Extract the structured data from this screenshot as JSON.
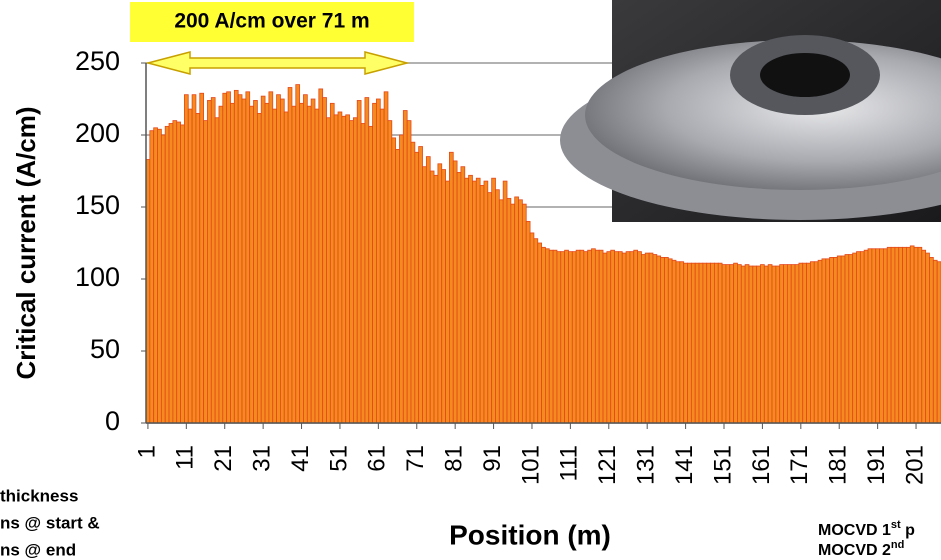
{
  "chart_data": {
    "type": "bar",
    "annotation": "200 A/cm over 71 m",
    "y_label": "Critical current (A/cm)",
    "x_label": "Position (m)",
    "color": "#f58a1f",
    "edge_color": "#e4471b",
    "grid": true,
    "ylim": [
      0,
      250
    ],
    "yticks": [
      0,
      50,
      100,
      150,
      200,
      250
    ],
    "xlim": [
      0.5,
      207.5
    ],
    "xticks": [
      1,
      11,
      21,
      31,
      41,
      51,
      61,
      71,
      81,
      91,
      101,
      111,
      121,
      131,
      141,
      151,
      161,
      171,
      181,
      191,
      201
    ],
    "x": [
      1,
      2,
      3,
      4,
      5,
      6,
      7,
      8,
      9,
      10,
      11,
      12,
      13,
      14,
      15,
      16,
      17,
      18,
      19,
      20,
      21,
      22,
      23,
      24,
      25,
      26,
      27,
      28,
      29,
      30,
      31,
      32,
      33,
      34,
      35,
      36,
      37,
      38,
      39,
      40,
      41,
      42,
      43,
      44,
      45,
      46,
      47,
      48,
      49,
      50,
      51,
      52,
      53,
      54,
      55,
      56,
      57,
      58,
      59,
      60,
      61,
      62,
      63,
      64,
      65,
      66,
      67,
      68,
      69,
      70,
      71,
      72,
      73,
      74,
      75,
      76,
      77,
      78,
      79,
      80,
      81,
      82,
      83,
      84,
      85,
      86,
      87,
      88,
      89,
      90,
      91,
      92,
      93,
      94,
      95,
      96,
      97,
      98,
      99,
      100,
      101,
      102,
      103,
      104,
      105,
      106,
      107,
      108,
      109,
      110,
      111,
      112,
      113,
      114,
      115,
      116,
      117,
      118,
      119,
      120,
      121,
      122,
      123,
      124,
      125,
      126,
      127,
      128,
      129,
      130,
      131,
      132,
      133,
      134,
      135,
      136,
      137,
      138,
      139,
      140,
      141,
      142,
      143,
      144,
      145,
      146,
      147,
      148,
      149,
      150,
      151,
      152,
      153,
      154,
      155,
      156,
      157,
      158,
      159,
      160,
      161,
      162,
      163,
      164,
      165,
      166,
      167,
      168,
      169,
      170,
      171,
      172,
      173,
      174,
      175,
      176,
      177,
      178,
      179,
      180,
      181,
      182,
      183,
      184,
      185,
      186,
      187,
      188,
      189,
      190,
      191,
      192,
      193,
      194,
      195,
      196,
      197,
      198,
      199,
      200,
      201,
      202,
      203,
      204,
      205,
      206,
      207
    ],
    "values": [
      183,
      203,
      205,
      204,
      200,
      206,
      208,
      210,
      209,
      207,
      228,
      218,
      228,
      215,
      229,
      210,
      224,
      226,
      212,
      220,
      229,
      230,
      222,
      231,
      228,
      225,
      230,
      220,
      224,
      215,
      227,
      222,
      230,
      218,
      228,
      225,
      216,
      233,
      220,
      235,
      222,
      228,
      220,
      225,
      218,
      232,
      226,
      212,
      222,
      214,
      216,
      213,
      214,
      210,
      212,
      224,
      208,
      226,
      206,
      222,
      225,
      218,
      230,
      210,
      198,
      190,
      200,
      217,
      210,
      195,
      188,
      192,
      178,
      185,
      175,
      172,
      180,
      176,
      168,
      188,
      182,
      174,
      178,
      170,
      172,
      168,
      170,
      165,
      168,
      160,
      170,
      162,
      155,
      168,
      156,
      152,
      157,
      155,
      152,
      140,
      132,
      128,
      125,
      122,
      121,
      120,
      120,
      119,
      119,
      120,
      119,
      119,
      120,
      120,
      119,
      120,
      121,
      120,
      120,
      118,
      119,
      120,
      119,
      119,
      118,
      119,
      119,
      120,
      119,
      117,
      118,
      118,
      117,
      116,
      115,
      115,
      114,
      113,
      112,
      112,
      111,
      111,
      111,
      111,
      111,
      111,
      111,
      111,
      111,
      111,
      110,
      110,
      110,
      111,
      110,
      109,
      110,
      109,
      109,
      109,
      110,
      109,
      110,
      109,
      109,
      110,
      110,
      110,
      110,
      110,
      111,
      111,
      111,
      112,
      112,
      113,
      114,
      114,
      115,
      115,
      116,
      116,
      117,
      117,
      118,
      119,
      119,
      120,
      121,
      121,
      121,
      121,
      121,
      122,
      122,
      122,
      122,
      122,
      122,
      123,
      122,
      122,
      120,
      118,
      115,
      113,
      112
    ],
    "left_notes": [
      "thickness",
      "ns @ start &",
      "ns @ end"
    ],
    "right_notes": [
      {
        "text": "MOCVD 1",
        "sup": "st",
        "tail": " p"
      },
      {
        "text": "MOCVD 2",
        "sup": "nd",
        "tail": ""
      }
    ]
  }
}
